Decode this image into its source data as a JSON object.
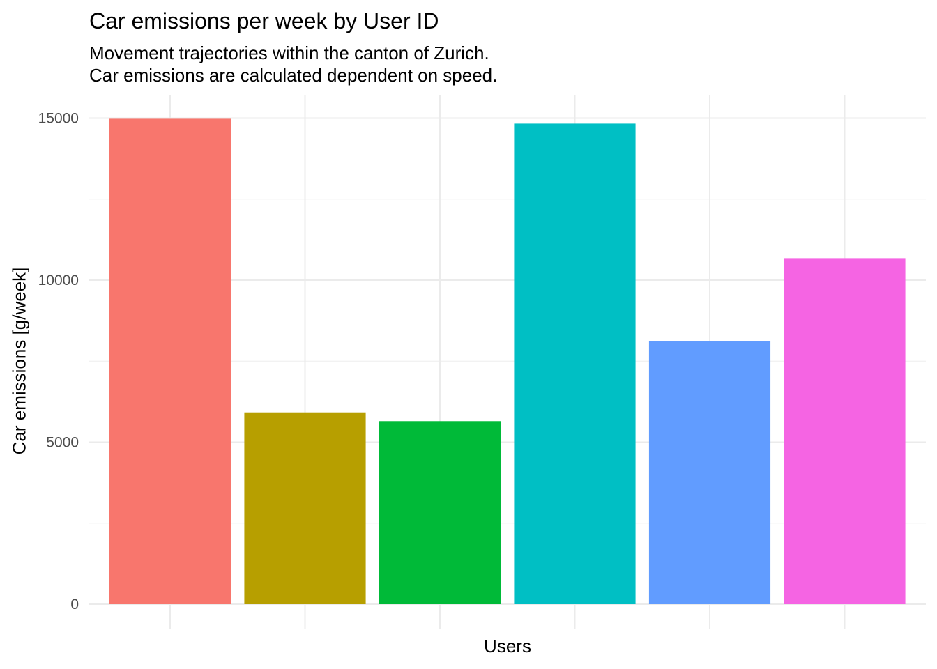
{
  "chart_data": {
    "type": "bar",
    "title": "Car emissions per week by User ID",
    "subtitle_lines": [
      "Movement trajectories within the canton of Zurich.",
      "Car emissions are calculated dependent on speed."
    ],
    "xlabel": "Users",
    "ylabel": "Car emissions [g/week]",
    "ylim": [
      0,
      15750
    ],
    "yticks": [
      0,
      5000,
      10000,
      15000
    ],
    "grid": true,
    "legend": "none",
    "values": [
      14980,
      5920,
      5650,
      14830,
      8120,
      10680
    ],
    "colors": [
      "#F8766D",
      "#B79F00",
      "#00BA38",
      "#00BFC4",
      "#619CFF",
      "#F564E3"
    ]
  }
}
